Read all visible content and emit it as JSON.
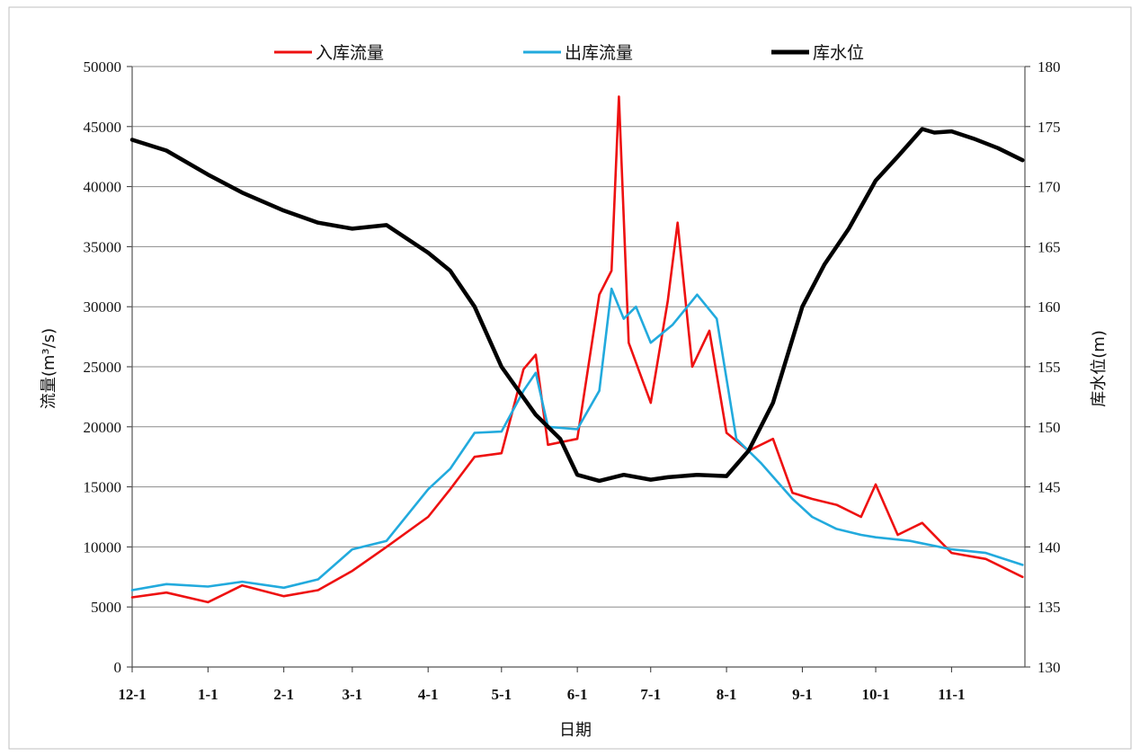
{
  "chart_data": {
    "type": "line",
    "xlabel": "日期",
    "ylabel_left": "流量(m³/s)",
    "ylabel_right": "库水位(m)",
    "y_left": {
      "lim": [
        0,
        50000
      ],
      "ticks": [
        0,
        5000,
        10000,
        15000,
        20000,
        25000,
        30000,
        35000,
        40000,
        45000,
        50000
      ]
    },
    "y_right": {
      "lim": [
        130,
        180
      ],
      "ticks": [
        130,
        135,
        140,
        145,
        150,
        155,
        160,
        165,
        170,
        175,
        180
      ]
    },
    "x": {
      "start": "12-1",
      "end": "11-30",
      "ticks": [
        "12-1",
        "1-1",
        "2-1",
        "3-1",
        "4-1",
        "5-1",
        "6-1",
        "7-1",
        "8-1",
        "9-1",
        "10-1",
        "11-1"
      ]
    },
    "legend": {
      "placement": "top"
    },
    "grid": true,
    "series": [
      {
        "name": "入库流量",
        "axis": "left",
        "color": "#ee1111",
        "points": [
          [
            "12-1",
            5800
          ],
          [
            "12-15",
            6200
          ],
          [
            "1-1",
            5400
          ],
          [
            "1-15",
            6800
          ],
          [
            "2-1",
            5900
          ],
          [
            "2-15",
            6400
          ],
          [
            "3-1",
            8000
          ],
          [
            "3-15",
            10000
          ],
          [
            "4-1",
            12500
          ],
          [
            "4-10",
            14800
          ],
          [
            "4-20",
            17500
          ],
          [
            "5-1",
            17800
          ],
          [
            "5-10",
            24800
          ],
          [
            "5-15",
            26000
          ],
          [
            "5-20",
            18500
          ],
          [
            "6-1",
            19000
          ],
          [
            "6-10",
            31000
          ],
          [
            "6-15",
            33000
          ],
          [
            "6-18",
            47500
          ],
          [
            "6-22",
            27000
          ],
          [
            "7-1",
            22000
          ],
          [
            "7-8",
            30500
          ],
          [
            "7-12",
            37000
          ],
          [
            "7-18",
            25000
          ],
          [
            "7-25",
            28000
          ],
          [
            "8-1",
            19500
          ],
          [
            "8-10",
            18000
          ],
          [
            "8-20",
            19000
          ],
          [
            "8-28",
            14500
          ],
          [
            "9-5",
            14000
          ],
          [
            "9-15",
            13500
          ],
          [
            "9-25",
            12500
          ],
          [
            "10-1",
            15200
          ],
          [
            "10-10",
            11000
          ],
          [
            "10-20",
            12000
          ],
          [
            "11-1",
            9500
          ],
          [
            "11-15",
            9000
          ],
          [
            "11-30",
            7500
          ]
        ]
      },
      {
        "name": "出库流量",
        "axis": "left",
        "color": "#22aadd",
        "points": [
          [
            "12-1",
            6400
          ],
          [
            "12-15",
            6900
          ],
          [
            "1-1",
            6700
          ],
          [
            "1-15",
            7100
          ],
          [
            "2-1",
            6600
          ],
          [
            "2-15",
            7300
          ],
          [
            "3-1",
            9800
          ],
          [
            "3-15",
            10500
          ],
          [
            "4-1",
            14800
          ],
          [
            "4-10",
            16500
          ],
          [
            "4-20",
            19500
          ],
          [
            "5-1",
            19600
          ],
          [
            "5-10",
            23000
          ],
          [
            "5-15",
            24500
          ],
          [
            "5-20",
            20000
          ],
          [
            "6-1",
            19800
          ],
          [
            "6-10",
            23000
          ],
          [
            "6-15",
            31500
          ],
          [
            "6-20",
            29000
          ],
          [
            "6-25",
            30000
          ],
          [
            "7-1",
            27000
          ],
          [
            "7-10",
            28500
          ],
          [
            "7-20",
            31000
          ],
          [
            "7-28",
            29000
          ],
          [
            "8-5",
            19000
          ],
          [
            "8-15",
            17000
          ],
          [
            "8-28",
            14000
          ],
          [
            "9-5",
            12500
          ],
          [
            "9-15",
            11500
          ],
          [
            "9-25",
            11000
          ],
          [
            "10-1",
            10800
          ],
          [
            "10-15",
            10500
          ],
          [
            "11-1",
            9800
          ],
          [
            "11-15",
            9500
          ],
          [
            "11-30",
            8500
          ]
        ]
      },
      {
        "name": "库水位",
        "axis": "right",
        "color": "#000000",
        "points": [
          [
            "12-1",
            173.9
          ],
          [
            "12-15",
            173.0
          ],
          [
            "1-1",
            171.0
          ],
          [
            "1-15",
            169.5
          ],
          [
            "2-1",
            168.0
          ],
          [
            "2-15",
            167.0
          ],
          [
            "3-1",
            166.5
          ],
          [
            "3-15",
            166.8
          ],
          [
            "4-1",
            164.5
          ],
          [
            "4-10",
            163.0
          ],
          [
            "4-20",
            160.0
          ],
          [
            "5-1",
            155.0
          ],
          [
            "5-15",
            151.0
          ],
          [
            "5-25",
            149.0
          ],
          [
            "6-1",
            146.0
          ],
          [
            "6-10",
            145.5
          ],
          [
            "6-20",
            146.0
          ],
          [
            "7-1",
            145.6
          ],
          [
            "7-8",
            145.8
          ],
          [
            "7-20",
            146.0
          ],
          [
            "8-1",
            145.9
          ],
          [
            "8-10",
            148.0
          ],
          [
            "8-20",
            152.0
          ],
          [
            "9-1",
            160.0
          ],
          [
            "9-10",
            163.5
          ],
          [
            "9-20",
            166.5
          ],
          [
            "10-1",
            170.5
          ],
          [
            "10-10",
            172.5
          ],
          [
            "10-20",
            174.8
          ],
          [
            "10-25",
            174.5
          ],
          [
            "11-1",
            174.6
          ],
          [
            "11-10",
            174.0
          ],
          [
            "11-20",
            173.2
          ],
          [
            "11-30",
            172.2
          ]
        ]
      }
    ]
  }
}
